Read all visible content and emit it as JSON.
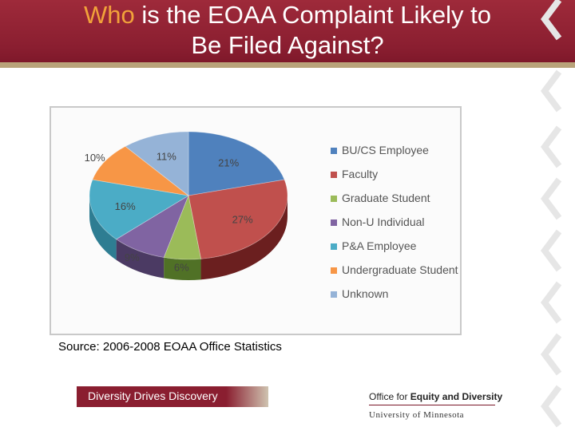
{
  "slide": {
    "title_accent": "Who",
    "title_rest": " is the EOAA Complaint Likely to",
    "title_line2": "Be Filed Against?",
    "source": "Source:  2006-2008 EOAA Office Statistics"
  },
  "footer": {
    "tagline": "Diversity Drives Discovery",
    "office_prefix": "Office for ",
    "office_bold": "Equity and Diversity",
    "university": "University of Minnesota"
  },
  "colors": {
    "header": "#8a1e30",
    "accent": "#f2a23a"
  },
  "chart_data": {
    "type": "pie",
    "title": "",
    "legend_position": "right",
    "categories": [
      "BU/CS Employee",
      "Faculty",
      "Graduate Student",
      "Non-U Individual",
      "P&A Employee",
      "Undergraduate Student",
      "Unknown"
    ],
    "values": [
      21,
      27,
      6,
      9,
      16,
      10,
      11
    ],
    "labels": [
      "21%",
      "27%",
      "6%",
      "9%",
      "16%",
      "10%",
      "11%"
    ],
    "colors": [
      "#4f81bd",
      "#c0504d",
      "#9bbb59",
      "#8064a2",
      "#4bacc6",
      "#f79646",
      "#95b3d7"
    ],
    "side_colors": [
      "#385d8a",
      "#6b1f1f",
      "#507126",
      "#4b3a63",
      "#2e7d92",
      "#b8621a",
      "#6a86ab"
    ]
  }
}
